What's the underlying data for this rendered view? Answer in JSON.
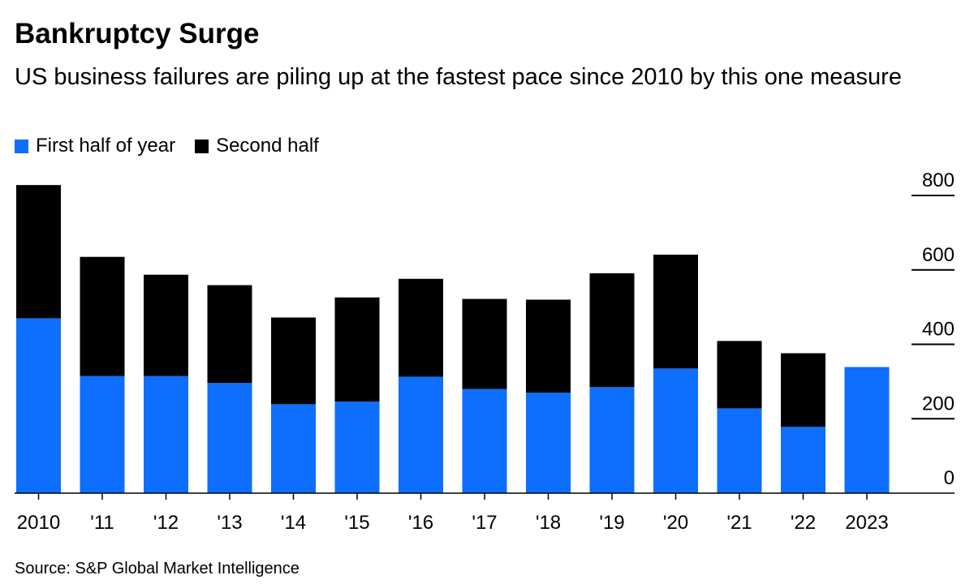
{
  "chart_data": {
    "type": "bar",
    "stacked": true,
    "title": "Bankruptcy Surge",
    "subtitle": "US business failures are piling up at the fastest pace since 2010 by this one measure",
    "categories": [
      "2010",
      "'11",
      "'12",
      "'13",
      "'14",
      "'15",
      "'16",
      "'17",
      "'18",
      "'19",
      "'20",
      "'21",
      "'22",
      "2023"
    ],
    "series": [
      {
        "name": "First half of year",
        "color": "#0e6efd",
        "values": [
          470,
          315,
          315,
          296,
          239,
          246,
          313,
          280,
          270,
          285,
          335,
          228,
          178,
          339
        ]
      },
      {
        "name": "Second half",
        "color": "#000000",
        "values": [
          358,
          320,
          272,
          263,
          233,
          280,
          263,
          242,
          250,
          306,
          306,
          181,
          198,
          0
        ]
      }
    ],
    "yticks": [
      0,
      200,
      400,
      600,
      800
    ],
    "ylim": [
      0,
      800
    ],
    "legend_position": "top-left",
    "source": "Source: S&P Global Market Intelligence"
  }
}
